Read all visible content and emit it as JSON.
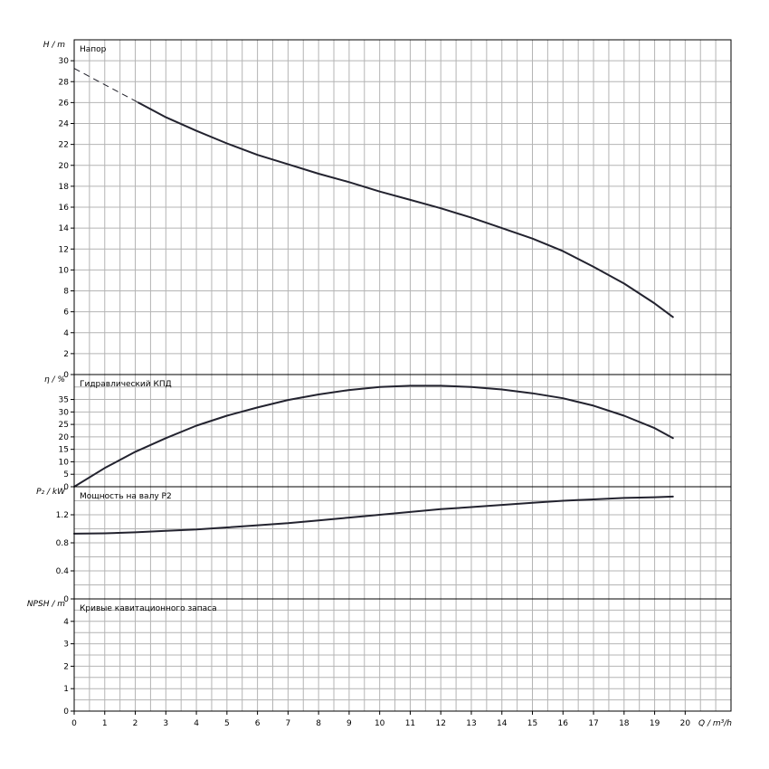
{
  "chart_data": {
    "type": "line",
    "x_axis": {
      "label": "Q / m³/h",
      "range": [
        0,
        21.5
      ],
      "ticks": [
        0,
        1,
        2,
        3,
        4,
        5,
        6,
        7,
        8,
        9,
        10,
        11,
        12,
        13,
        14,
        15,
        16,
        17,
        18,
        19,
        20
      ],
      "grid_step": 0.5
    },
    "panels": [
      {
        "id": "head",
        "title": "Напор",
        "ylabel": "H / m",
        "ylim": [
          0,
          32
        ],
        "ticks": [
          0,
          2,
          4,
          6,
          8,
          10,
          12,
          14,
          16,
          18,
          20,
          22,
          24,
          26,
          28,
          30
        ],
        "grid_step": 2,
        "series": [
          {
            "dashed_x": [
              0,
              2.1
            ],
            "x": [
              2.1,
              3,
              4,
              5,
              6,
              7,
              8,
              9,
              10,
              11,
              12,
              13,
              14,
              15,
              16,
              17,
              18,
              19,
              19.6
            ],
            "y": [
              26.0,
              24.6,
              23.3,
              22.1,
              21.0,
              20.1,
              19.2,
              18.4,
              17.5,
              16.7,
              15.9,
              15.0,
              14.0,
              13.0,
              11.8,
              10.3,
              8.7,
              6.8,
              5.5
            ]
          }
        ]
      },
      {
        "id": "efficiency",
        "title": "Гидравлический КПД",
        "ylabel": "η / %",
        "ylim": [
          0,
          45
        ],
        "ticks": [
          0,
          5,
          10,
          15,
          20,
          25,
          30,
          35
        ],
        "grid_step": 5,
        "series": [
          {
            "x": [
              0,
              1,
              2,
              3,
              4,
              5,
              6,
              7,
              8,
              9,
              10,
              11,
              12,
              13,
              14,
              15,
              16,
              17,
              18,
              19,
              19.6
            ],
            "y": [
              0,
              7.5,
              14,
              19.5,
              24.5,
              28.5,
              31.8,
              34.8,
              37,
              38.8,
              40,
              40.5,
              40.5,
              40,
              39,
              37.5,
              35.5,
              32.5,
              28.5,
              23.5,
              19.5
            ]
          }
        ]
      },
      {
        "id": "power",
        "title": "Мощность на валу P2",
        "ylabel": "P₂ / kW",
        "ylim": [
          0,
          1.6
        ],
        "ticks": [
          0,
          0.4,
          0.8,
          1.2
        ],
        "tick_labels": [
          "0",
          "0.4",
          "0.8",
          "1.2"
        ],
        "grid_step": 0.2,
        "series": [
          {
            "x": [
              0,
              1,
              2,
              3,
              4,
              5,
              6,
              7,
              8,
              9,
              10,
              11,
              12,
              13,
              14,
              15,
              16,
              17,
              18,
              19,
              19.6
            ],
            "y": [
              0.93,
              0.935,
              0.95,
              0.97,
              0.99,
              1.02,
              1.05,
              1.08,
              1.12,
              1.16,
              1.2,
              1.24,
              1.28,
              1.31,
              1.34,
              1.37,
              1.4,
              1.42,
              1.44,
              1.45,
              1.46
            ]
          }
        ]
      },
      {
        "id": "npsh",
        "title": "Кривые кавитационного запаса",
        "ylabel": "NPSH / m",
        "ylim": [
          0,
          5
        ],
        "ticks": [
          0,
          1,
          2,
          3,
          4
        ],
        "grid_step": 0.5,
        "series": []
      }
    ]
  }
}
